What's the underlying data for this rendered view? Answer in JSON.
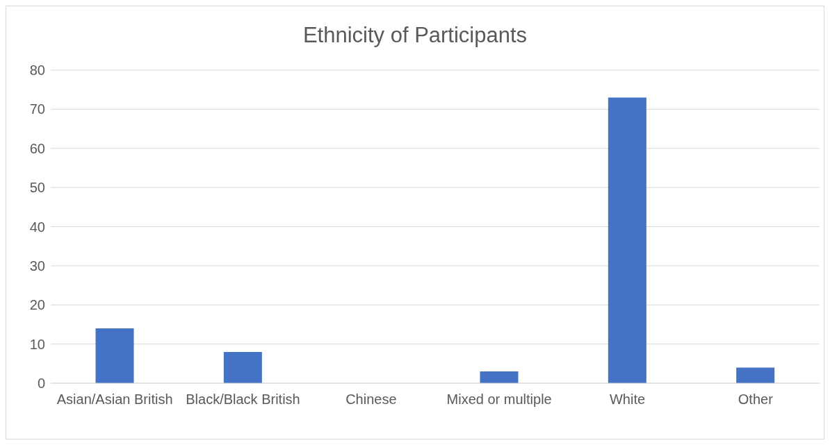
{
  "chart_data": {
    "type": "bar",
    "title": "Ethnicity of Participants",
    "categories": [
      "Asian/Asian British",
      "Black/Black British",
      "Chinese",
      "Mixed or multiple",
      "White",
      "Other"
    ],
    "values": [
      14,
      8,
      0,
      3,
      73,
      4
    ],
    "color": "#4472c4",
    "ylim": [
      0,
      80
    ],
    "yticks": [
      0,
      10,
      20,
      30,
      40,
      50,
      60,
      70,
      80
    ],
    "grid": "y",
    "legend": false
  }
}
